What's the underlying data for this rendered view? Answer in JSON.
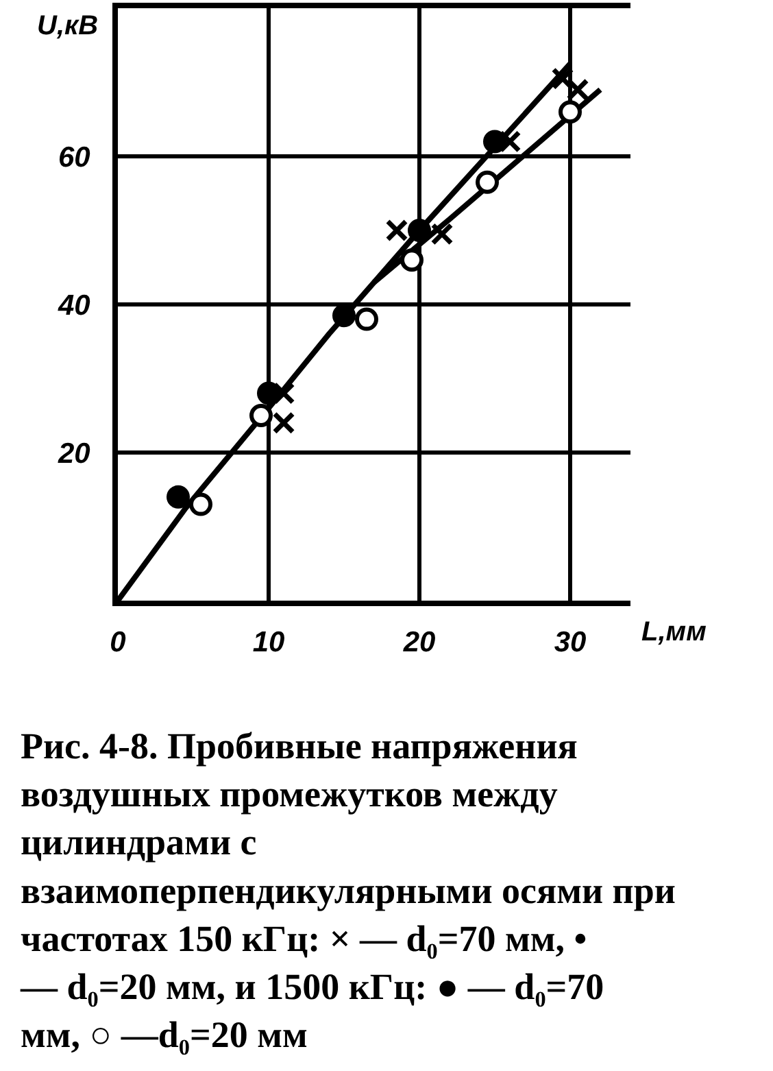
{
  "chart_data": {
    "type": "scatter",
    "xlabel": "L,мм",
    "ylabel": "U,кВ",
    "xlim": [
      0,
      34
    ],
    "ylim": [
      0,
      80
    ],
    "xticks": [
      0,
      10,
      20,
      30
    ],
    "yticks": [
      20,
      40,
      60
    ],
    "grid": true,
    "series": [
      {
        "type": "line",
        "color": "#000000",
        "marker": "none",
        "x": [
          0,
          4.5,
          10,
          14,
          20,
          30
        ],
        "values": [
          0,
          12.5,
          26,
          36,
          50,
          72.5
        ]
      },
      {
        "type": "line",
        "color": "#000000",
        "marker": "none",
        "x": [
          17,
          22,
          32
        ],
        "values": [
          43,
          51.5,
          69
        ]
      },
      {
        "color": "#000000",
        "marker": "cross",
        "x": [
          11,
          11,
          18.5,
          21.5,
          26,
          29.5,
          30.5
        ],
        "values": [
          28,
          24,
          50,
          49.5,
          62,
          70.5,
          69
        ]
      },
      {
        "color": "#000000",
        "marker": "circle",
        "x": [
          4,
          10,
          15,
          20,
          25
        ],
        "values": [
          14,
          28,
          38.5,
          50,
          62
        ]
      },
      {
        "color": "#ffffff",
        "marker": "circle",
        "x": [
          5.5,
          9.5,
          16.5,
          19.5,
          24.5,
          30
        ],
        "values": [
          13,
          25,
          38,
          46,
          56.5,
          66
        ]
      }
    ],
    "annotations": [
      "Рис. 4-8. Пробивные напряжения воздушных промежутков между цилиндрами с взаимоперпендикулярными осями при частотах 150 кГц: × — d₀=70 мм, • — d₀=20 мм, и 1500 кГц: ● — d₀=70 мм, ○ —d₀=20 мм"
    ]
  }
}
